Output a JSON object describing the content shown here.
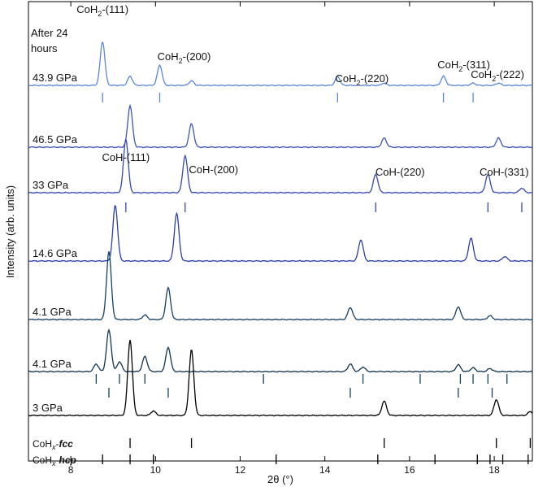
{
  "chart_data": {
    "type": "line",
    "xlabel": "2θ (°)",
    "ylabel": "Intensity (arb. units)",
    "xlim": [
      7.0,
      18.9
    ],
    "x_ticks": [
      8,
      10,
      12,
      14,
      16,
      18
    ],
    "y_ticks": "none",
    "grid": false,
    "legend": "none",
    "after_label": "After 24 hours",
    "series": [
      {
        "name": "43.9 GPa",
        "color": "#5b86d6",
        "peaks": [
          {
            "x": 8.75,
            "h": 0.58
          },
          {
            "x": 9.4,
            "h": 0.12
          },
          {
            "x": 10.1,
            "h": 0.27
          },
          {
            "x": 10.85,
            "h": 0.06
          },
          {
            "x": 14.3,
            "h": 0.12
          },
          {
            "x": 15.4,
            "h": 0.03
          },
          {
            "x": 16.8,
            "h": 0.12
          },
          {
            "x": 17.5,
            "h": 0.03
          },
          {
            "x": 18.1,
            "h": 0.03
          }
        ]
      },
      {
        "name": "46.5 GPa",
        "color": "#3e56b4",
        "peaks": [
          {
            "x": 9.4,
            "h": 0.55
          },
          {
            "x": 10.85,
            "h": 0.31
          },
          {
            "x": 15.4,
            "h": 0.12
          },
          {
            "x": 18.1,
            "h": 0.12
          }
        ]
      },
      {
        "name": "33 GPa",
        "color": "#3548b0",
        "peaks": [
          {
            "x": 9.3,
            "h": 0.71
          },
          {
            "x": 10.7,
            "h": 0.49
          },
          {
            "x": 15.2,
            "h": 0.24
          },
          {
            "x": 17.85,
            "h": 0.24
          },
          {
            "x": 18.65,
            "h": 0.06
          }
        ]
      },
      {
        "name": "14.6 GPa",
        "color": "#2c3fa8",
        "peaks": [
          {
            "x": 9.05,
            "h": 0.74
          },
          {
            "x": 10.5,
            "h": 0.63
          },
          {
            "x": 14.85,
            "h": 0.28
          },
          {
            "x": 17.45,
            "h": 0.3
          },
          {
            "x": 18.25,
            "h": 0.06
          }
        ]
      },
      {
        "name": "4.1 GPa",
        "color": "#163f63",
        "peaks": [
          {
            "x": 8.9,
            "h": 0.9
          },
          {
            "x": 9.75,
            "h": 0.06
          },
          {
            "x": 10.3,
            "h": 0.42
          },
          {
            "x": 14.6,
            "h": 0.16
          },
          {
            "x": 17.15,
            "h": 0.17
          },
          {
            "x": 17.9,
            "h": 0.05
          }
        ]
      },
      {
        "name": "4.1 GPa",
        "color": "#12354f",
        "peaks": [
          {
            "x": 8.6,
            "h": 0.1
          },
          {
            "x": 8.9,
            "h": 0.55
          },
          {
            "x": 9.15,
            "h": 0.13
          },
          {
            "x": 9.75,
            "h": 0.2
          },
          {
            "x": 10.3,
            "h": 0.32
          },
          {
            "x": 14.6,
            "h": 0.1
          },
          {
            "x": 14.9,
            "h": 0.06
          },
          {
            "x": 17.15,
            "h": 0.09
          },
          {
            "x": 17.5,
            "h": 0.05
          },
          {
            "x": 17.9,
            "h": 0.04
          }
        ]
      },
      {
        "name": "3 GPa",
        "color": "#000000",
        "peaks": [
          {
            "x": 9.4,
            "h": 1.0
          },
          {
            "x": 9.95,
            "h": 0.06
          },
          {
            "x": 10.85,
            "h": 0.87
          },
          {
            "x": 15.4,
            "h": 0.19
          },
          {
            "x": 18.05,
            "h": 0.21
          },
          {
            "x": 18.85,
            "h": 0.05
          }
        ]
      }
    ],
    "annotations": [
      {
        "series": 0,
        "x": 8.75,
        "text": "CoH",
        "sub": "2",
        "tail": "-(111)"
      },
      {
        "series": 0,
        "x": 10.1,
        "text": "CoH",
        "sub": "2",
        "tail": "-(200)"
      },
      {
        "series": 0,
        "x": 14.3,
        "text": "CoH",
        "sub": "2",
        "tail": "-(220)"
      },
      {
        "series": 0,
        "x": 16.8,
        "text": "CoH",
        "sub": "2",
        "tail": "-(311)"
      },
      {
        "series": 0,
        "x": 17.5,
        "text": "CoH",
        "sub": "2",
        "tail": "-(222)"
      },
      {
        "series": 2,
        "x": 9.3,
        "text": "CoH-(111)",
        "sub": "",
        "tail": ""
      },
      {
        "series": 2,
        "x": 10.7,
        "text": "CoH-(200)",
        "sub": "",
        "tail": ""
      },
      {
        "series": 2,
        "x": 15.2,
        "text": "CoH-(220)",
        "sub": "",
        "tail": ""
      },
      {
        "series": 2,
        "x": 17.85,
        "text": "CoH-(331)",
        "sub": "",
        "tail": ""
      }
    ],
    "tick_rows": [
      {
        "label": "",
        "color": "#5b86d6",
        "x": [
          8.75,
          10.1,
          14.3,
          16.8,
          17.5
        ]
      },
      {
        "label": "",
        "color": "#3548b0",
        "x": [
          9.3,
          10.7,
          15.2,
          17.85,
          18.65
        ]
      },
      {
        "label": "",
        "color": "#163f63",
        "x": [
          8.6,
          9.15,
          9.75,
          12.55,
          14.9,
          16.25,
          17.2,
          17.5,
          17.85,
          18.3
        ]
      },
      {
        "label": "",
        "color": "#163f63",
        "x": [
          8.9,
          10.3,
          14.6,
          17.15,
          17.95
        ]
      },
      {
        "label": "CoHx-fcc",
        "sub": "x",
        "style": "fcc",
        "color": "#000000",
        "x": [
          9.4,
          10.85,
          15.4,
          18.05,
          18.85
        ]
      },
      {
        "label": "CoHx-hcp",
        "sub": "x",
        "style": "hcp",
        "color": "#000000",
        "x": [
          8.75,
          9.4,
          9.95,
          12.85,
          15.25,
          16.6,
          17.6,
          17.9,
          18.2,
          18.8
        ]
      }
    ]
  }
}
